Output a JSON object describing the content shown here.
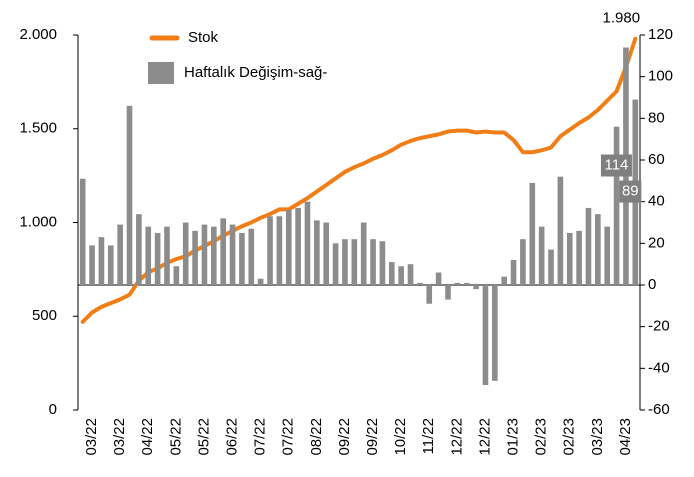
{
  "chart_data": {
    "type": "bar_line",
    "categories": [
      null,
      "03/22",
      null,
      null,
      "03/22",
      null,
      null,
      "04/22",
      null,
      null,
      "05/22",
      null,
      null,
      "05/22",
      null,
      null,
      "06/22",
      null,
      null,
      "07/22",
      null,
      null,
      "07/22",
      null,
      null,
      "08/22",
      null,
      null,
      "09/22",
      null,
      null,
      "09/22",
      null,
      null,
      "10/22",
      null,
      null,
      "11/22",
      null,
      null,
      "12/22",
      null,
      null,
      "12/22",
      null,
      null,
      "01/23",
      null,
      null,
      "02/23",
      null,
      null,
      "02/23",
      null,
      null,
      "03/23",
      null,
      null,
      "04/23",
      null
    ],
    "series": [
      {
        "name": "Stok",
        "type": "line",
        "axis": "y",
        "color": "#f07d16",
        "values": [
          470,
          520,
          550,
          570,
          590,
          615,
          690,
          735,
          755,
          785,
          805,
          820,
          850,
          875,
          900,
          930,
          955,
          980,
          1000,
          1025,
          1045,
          1070,
          1070,
          1100,
          1130,
          1165,
          1200,
          1235,
          1270,
          1295,
          1315,
          1340,
          1360,
          1385,
          1415,
          1435,
          1450,
          1460,
          1470,
          1485,
          1490,
          1490,
          1480,
          1485,
          1480,
          1480,
          1440,
          1375,
          1375,
          1385,
          1400,
          1460,
          1495,
          1530,
          1560,
          1600,
          1650,
          1700,
          1830,
          1980
        ],
        "value_labels": [
          null,
          null,
          null,
          null,
          null,
          null,
          null,
          null,
          null,
          null,
          null,
          null,
          null,
          null,
          null,
          null,
          null,
          null,
          null,
          null,
          null,
          null,
          null,
          null,
          null,
          null,
          null,
          null,
          null,
          null,
          null,
          null,
          null,
          null,
          null,
          null,
          null,
          null,
          null,
          null,
          null,
          null,
          null,
          null,
          null,
          null,
          null,
          null,
          null,
          null,
          null,
          null,
          null,
          null,
          null,
          null,
          null,
          null,
          null,
          "1.980"
        ]
      },
      {
        "name": "Haftalık Değişim-sağ-",
        "type": "bar",
        "axis": "y2",
        "color": "#8c8c8c",
        "values": [
          51,
          19,
          23,
          19,
          29,
          86,
          34,
          28,
          25,
          28,
          9,
          30,
          26,
          29,
          28,
          32,
          29,
          25,
          27,
          3,
          33,
          33,
          36,
          37,
          40,
          31,
          30,
          20,
          22,
          22,
          30,
          22,
          21,
          11,
          9,
          10,
          1,
          -9,
          6,
          -7,
          1,
          1,
          -2,
          -48,
          -46,
          4,
          12,
          22,
          49,
          28,
          17,
          52,
          25,
          26,
          37,
          34,
          28,
          76,
          114,
          89
        ],
        "value_labels": [
          null,
          null,
          null,
          null,
          null,
          null,
          null,
          null,
          null,
          null,
          null,
          null,
          null,
          null,
          null,
          null,
          null,
          null,
          null,
          null,
          null,
          null,
          null,
          null,
          null,
          null,
          null,
          null,
          null,
          null,
          null,
          null,
          null,
          null,
          null,
          null,
          null,
          null,
          null,
          null,
          null,
          null,
          null,
          null,
          null,
          null,
          null,
          null,
          null,
          null,
          null,
          null,
          null,
          null,
          null,
          null,
          null,
          null,
          "114",
          "89"
        ]
      }
    ],
    "ylim": [
      0,
      2000
    ],
    "yticks": [
      0,
      500,
      {
        "value": 1000,
        "label": "1.000"
      },
      {
        "value": 1500,
        "label": "1.500"
      },
      {
        "value": 2000,
        "label": "2.000"
      }
    ],
    "y2lim": [
      -60,
      120
    ],
    "y2ticks": [
      -60,
      -40,
      -20,
      0,
      20,
      40,
      60,
      80,
      100,
      120
    ]
  }
}
